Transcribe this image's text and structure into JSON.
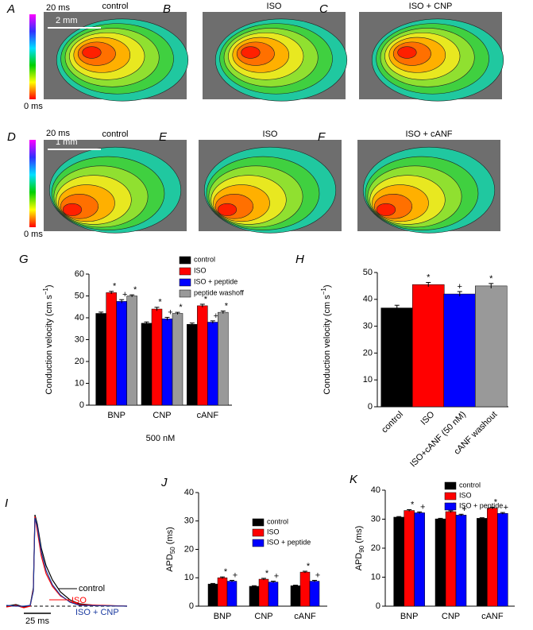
{
  "maps": [
    {
      "colorbar": [
        "20 ms",
        "0 ms"
      ],
      "scale": "2 mm",
      "panels": [
        {
          "letter": "A",
          "title": "control"
        },
        {
          "letter": "B",
          "title": "ISO"
        },
        {
          "letter": "C",
          "title": "ISO + CNP"
        }
      ]
    },
    {
      "colorbar": [
        "20 ms",
        "0 ms"
      ],
      "scale": "1 mm",
      "panels": [
        {
          "letter": "D",
          "title": "control"
        },
        {
          "letter": "E",
          "title": "ISO"
        },
        {
          "letter": "F",
          "title": "ISO + cANF"
        }
      ]
    }
  ],
  "traces": {
    "letter": "I",
    "labels": [
      "control",
      "ISO",
      "ISO + CNP"
    ],
    "scale": "25 ms"
  },
  "chart_data": [
    {
      "panel": "G",
      "type": "bar",
      "ylabel": [
        "Conduction velocity (cm s",
        "−1",
        ")"
      ],
      "ylabel_script": "super",
      "xlabel": "500 nM",
      "categories": [
        "BNP",
        "CNP",
        "cANF"
      ],
      "ylim": [
        0,
        60
      ],
      "yticks": [
        0,
        10,
        20,
        30,
        40,
        50,
        60
      ],
      "series": [
        {
          "name": "control",
          "color": "#000000",
          "values": [
            42,
            37.5,
            37
          ],
          "errors": [
            0.6,
            0.6,
            0.6
          ],
          "markers": [
            null,
            null,
            null
          ]
        },
        {
          "name": "ISO",
          "color": "#ff0000",
          "values": [
            51.5,
            44,
            45.5
          ],
          "errors": [
            0.6,
            0.8,
            0.7
          ],
          "markers": [
            "*",
            "*",
            "*"
          ]
        },
        {
          "name": "ISO + peptide",
          "color": "#0000ff",
          "values": [
            47.5,
            39.5,
            38
          ],
          "errors": [
            0.8,
            0.7,
            0.6
          ],
          "markers": [
            "+",
            "+",
            "+"
          ]
        },
        {
          "name": "peptide washoff",
          "color": "#999999",
          "values": [
            50,
            42,
            42.5
          ],
          "errors": [
            0.5,
            0.5,
            0.6
          ],
          "markers": [
            "*",
            "*",
            "*"
          ]
        }
      ]
    },
    {
      "panel": "H",
      "type": "bar",
      "ylabel": [
        "Conduction velocity (cm s",
        "−1",
        ")"
      ],
      "ylabel_script": "super",
      "categories": [
        "control",
        "ISO",
        "ISO+cANF (50 nM)",
        "cANF washout"
      ],
      "ylim": [
        0,
        50
      ],
      "yticks": [
        0,
        10,
        20,
        30,
        40,
        50
      ],
      "values": [
        36.8,
        45.5,
        42,
        45
      ],
      "errors": [
        1,
        0.8,
        0.9,
        0.9
      ],
      "colors": [
        "#000000",
        "#ff0000",
        "#0000ff",
        "#999999"
      ],
      "markers": [
        null,
        "*",
        "+",
        "*"
      ]
    },
    {
      "panel": "J",
      "type": "bar",
      "ylabel": [
        "APD",
        "50",
        " (ms)"
      ],
      "ylabel_script": "sub",
      "categories": [
        "BNP",
        "CNP",
        "cANF"
      ],
      "ylim": [
        0,
        40
      ],
      "yticks": [
        0,
        10,
        20,
        30,
        40
      ],
      "series": [
        {
          "name": "control",
          "color": "#000000",
          "values": [
            7.8,
            7,
            7.2
          ],
          "errors": [
            0.2,
            0.2,
            0.2
          ],
          "markers": [
            null,
            null,
            null
          ]
        },
        {
          "name": "ISO",
          "color": "#ff0000",
          "values": [
            10,
            9.5,
            12
          ],
          "errors": [
            0.3,
            0.3,
            0.3
          ],
          "markers": [
            "*",
            "*",
            "*"
          ]
        },
        {
          "name": "ISO + peptide",
          "color": "#0000ff",
          "values": [
            8.8,
            8.5,
            8.8
          ],
          "errors": [
            0.3,
            0.3,
            0.3
          ],
          "markers": [
            "+",
            "+",
            "+"
          ]
        }
      ]
    },
    {
      "panel": "K",
      "type": "bar",
      "ylabel": [
        "APD",
        "90",
        " (ms)"
      ],
      "ylabel_script": "sub",
      "categories": [
        "BNP",
        "CNP",
        "cANF"
      ],
      "ylim": [
        0,
        40
      ],
      "yticks": [
        0,
        10,
        20,
        30,
        40
      ],
      "series": [
        {
          "name": "control",
          "color": "#000000",
          "values": [
            30.7,
            30.1,
            30.3
          ],
          "errors": [
            0.2,
            0.2,
            0.2
          ],
          "markers": [
            null,
            null,
            null
          ]
        },
        {
          "name": "ISO",
          "color": "#ff0000",
          "values": [
            33,
            32.6,
            33.8
          ],
          "errors": [
            0.3,
            0.3,
            0.3
          ],
          "markers": [
            "*",
            "*",
            "*"
          ]
        },
        {
          "name": "ISO + peptide",
          "color": "#0000ff",
          "values": [
            32.2,
            31.4,
            32
          ],
          "errors": [
            0.3,
            0.3,
            0.3
          ],
          "markers": [
            "+",
            "+",
            "+"
          ]
        }
      ]
    }
  ]
}
